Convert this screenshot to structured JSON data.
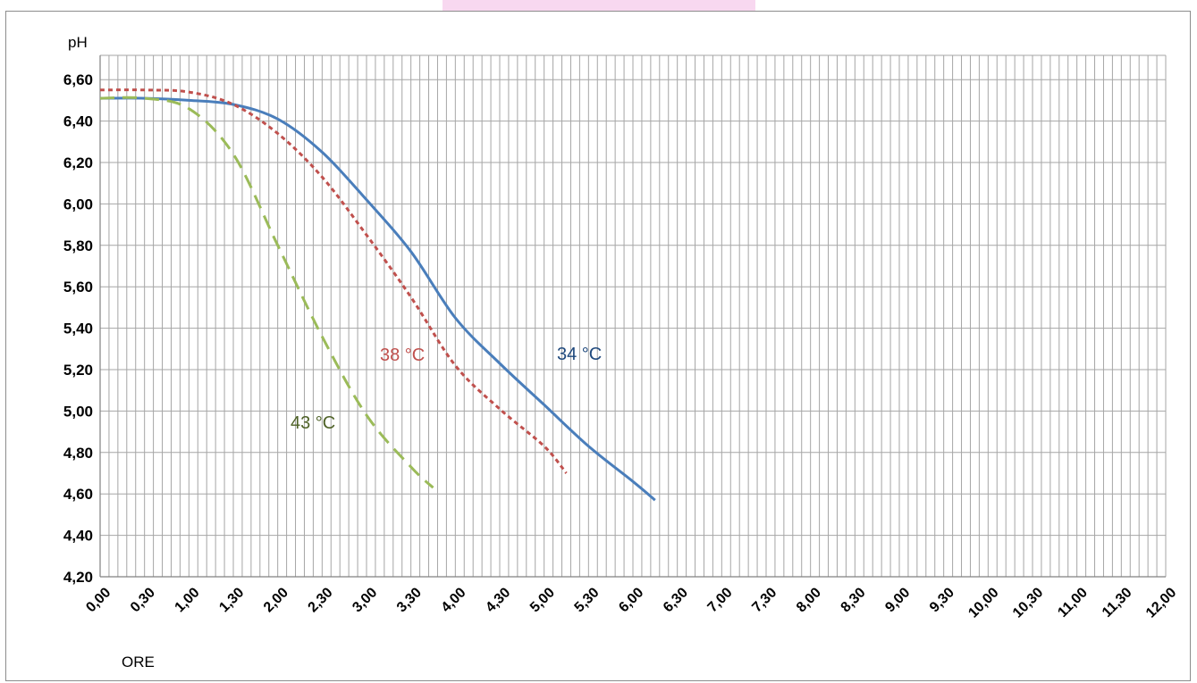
{
  "chart_data": {
    "type": "line",
    "ylabel": "pH",
    "xlabel": "ORE",
    "x_tick_labels": [
      "0,00",
      "0,30",
      "1,00",
      "1,30",
      "2,00",
      "2,30",
      "3,00",
      "3,30",
      "4,00",
      "4,30",
      "5,00",
      "5,30",
      "6,00",
      "6,30",
      "7,00",
      "7,30",
      "8,00",
      "8,30",
      "9,00",
      "9,30",
      "10,00",
      "10,30",
      "11,00",
      "11,30",
      "12,00"
    ],
    "y_tick_labels": [
      "4,20",
      "4,40",
      "4,60",
      "4,80",
      "5,00",
      "5,20",
      "5,40",
      "5,60",
      "5,80",
      "6,00",
      "6,20",
      "6,40",
      "6,60"
    ],
    "ylim": [
      4.2,
      6.7
    ],
    "xlim_hours": [
      0,
      12
    ],
    "grid": true,
    "series": [
      {
        "name": "34 °C",
        "color": "#4a7ebb",
        "style": "solid",
        "x_hours": [
          0.0,
          0.5,
          1.0,
          1.5,
          2.0,
          2.5,
          3.0,
          3.5,
          4.0,
          4.5,
          5.0,
          5.5,
          6.0,
          6.25
        ],
        "y": [
          6.51,
          6.51,
          6.5,
          6.48,
          6.41,
          6.25,
          6.02,
          5.77,
          5.45,
          5.23,
          5.03,
          4.83,
          4.66,
          4.57
        ]
      },
      {
        "name": "38 °C",
        "color": "#c0504d",
        "style": "dotted",
        "x_hours": [
          0.0,
          0.5,
          1.0,
          1.5,
          2.0,
          2.5,
          3.0,
          3.5,
          4.0,
          4.5,
          5.0,
          5.25
        ],
        "y": [
          6.55,
          6.55,
          6.54,
          6.48,
          6.34,
          6.13,
          5.85,
          5.55,
          5.22,
          5.01,
          4.83,
          4.7
        ]
      },
      {
        "name": "43 °C",
        "color": "#9bbb59",
        "style": "dashed",
        "x_hours": [
          0.0,
          0.5,
          1.0,
          1.5,
          2.0,
          2.5,
          3.0,
          3.5,
          3.75
        ],
        "y": [
          6.51,
          6.51,
          6.46,
          6.24,
          5.8,
          5.36,
          4.98,
          4.73,
          4.63
        ]
      }
    ]
  },
  "labels": {
    "s34": "34 °C",
    "s38": "38 °C",
    "s43": "43 °C",
    "s34_color": "#1f497d",
    "s38_color": "#c0504d",
    "s43_color": "#4f6228"
  }
}
